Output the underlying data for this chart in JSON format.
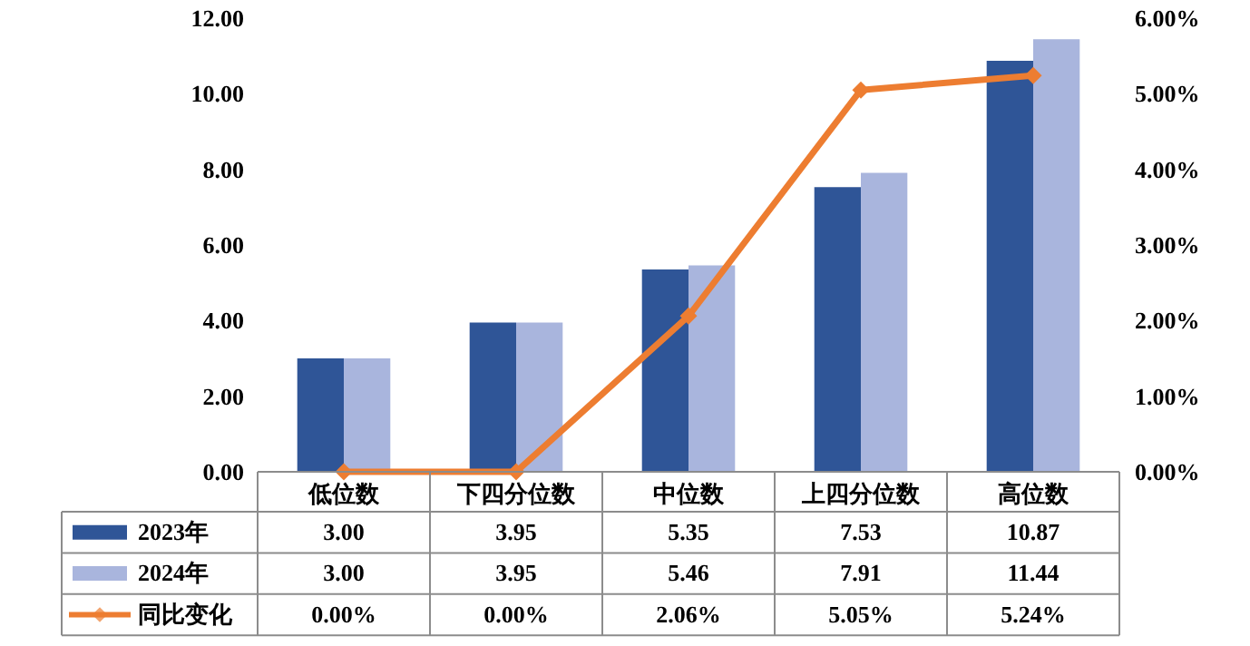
{
  "chart_data": {
    "type": "bar",
    "categories": [
      "低位数",
      "下四分位数",
      "中位数",
      "上四分位数",
      "高位数"
    ],
    "series": [
      {
        "name": "2023年",
        "type": "bar",
        "color": "#2f5597",
        "values": [
          3.0,
          3.95,
          5.35,
          7.53,
          10.87
        ],
        "value_labels": [
          "3.00",
          "3.95",
          "5.35",
          "7.53",
          "10.87"
        ]
      },
      {
        "name": "2024年",
        "type": "bar",
        "color": "#a9b5dd",
        "values": [
          3.0,
          3.95,
          5.46,
          7.91,
          11.44
        ],
        "value_labels": [
          "3.00",
          "3.95",
          "5.46",
          "7.91",
          "11.44"
        ]
      },
      {
        "name": "同比变化",
        "type": "line",
        "axis": "y2",
        "color": "#ed7d31",
        "values": [
          0.0,
          0.0,
          2.06,
          5.05,
          5.24
        ],
        "value_labels": [
          "0.00%",
          "0.00%",
          "2.06%",
          "5.05%",
          "5.24%"
        ]
      }
    ],
    "ylim": [
      0,
      12
    ],
    "yticks": [
      {
        "value": 0,
        "label": "0.00"
      },
      {
        "value": 2,
        "label": "2.00"
      },
      {
        "value": 4,
        "label": "4.00"
      },
      {
        "value": 6,
        "label": "6.00"
      },
      {
        "value": 8,
        "label": "8.00"
      },
      {
        "value": 10,
        "label": "10.00"
      },
      {
        "value": 12,
        "label": "12.00"
      }
    ],
    "y2lim": [
      0,
      6
    ],
    "y2ticks": [
      {
        "value": 0,
        "label": "0.00%"
      },
      {
        "value": 1,
        "label": "1.00%"
      },
      {
        "value": 2,
        "label": "2.00%"
      },
      {
        "value": 3,
        "label": "3.00%"
      },
      {
        "value": 4,
        "label": "4.00%"
      },
      {
        "value": 5,
        "label": "5.00%"
      },
      {
        "value": 6,
        "label": "6.00%"
      }
    ],
    "legend": "bottom",
    "marker": "diamond",
    "line_style": "solid"
  }
}
